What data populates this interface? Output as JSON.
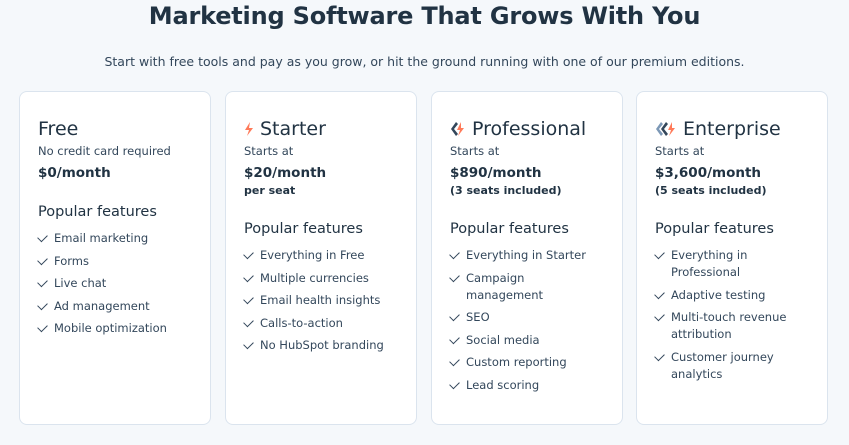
{
  "header": {
    "title": "Marketing Software That Grows With You",
    "subtitle": "Start with free tools and pay as you grow, or hit the ground running with one of our premium editions."
  },
  "accent": "#ff7a59",
  "plans": [
    {
      "name": "Free",
      "subtext": "No credit card required",
      "price": "$0/month",
      "features_title": "Popular features",
      "features": [
        "Email marketing",
        "Forms",
        "Live chat",
        "Ad management",
        "Mobile optimization"
      ]
    },
    {
      "name": "Starter",
      "icon": "sprocket-single-icon",
      "subtext": "Starts at",
      "price": "$20/month",
      "note": "per seat",
      "features_title": "Popular features",
      "features": [
        "Everything in Free",
        "Multiple currencies",
        "Email health insights",
        "Calls-to-action",
        "No HubSpot branding"
      ]
    },
    {
      "name": "Professional",
      "icon": "sprocket-double-icon",
      "subtext": "Starts at",
      "price": "$890/month",
      "note": "(3 seats included)",
      "features_title": "Popular features",
      "features": [
        "Everything in Starter",
        "Campaign management",
        "SEO",
        "Social media",
        "Custom reporting",
        "Lead scoring"
      ]
    },
    {
      "name": "Enterprise",
      "icon": "sprocket-triple-icon",
      "subtext": "Starts at",
      "price": "$3,600/month",
      "note": "(5 seats included)",
      "features_title": "Popular features",
      "features": [
        "Everything in Professional",
        "Adaptive testing",
        "Multi-touch revenue attribution",
        "Customer journey analytics"
      ]
    }
  ]
}
